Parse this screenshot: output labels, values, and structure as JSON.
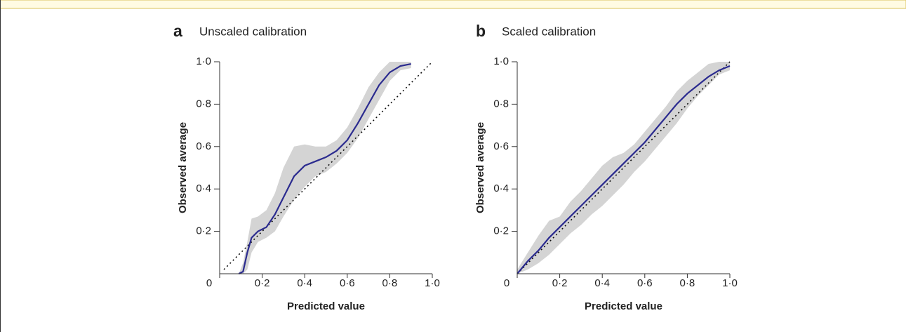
{
  "chart_data": [
    {
      "type": "line",
      "panel": "a",
      "title": "Unscaled calibration",
      "xlabel": "Predicted value",
      "ylabel": "Observed average",
      "xlim": [
        0,
        1
      ],
      "ylim": [
        0,
        1
      ],
      "xticks": [
        0,
        {
          "value": 0.2,
          "label": "0·2"
        },
        {
          "value": 0.4,
          "label": "0·4"
        },
        {
          "value": 0.6,
          "label": "0·6"
        },
        {
          "value": 0.8,
          "label": "0·8"
        },
        {
          "value": 1,
          "label": "1·0"
        }
      ],
      "yticks": [
        {
          "value": 0.2,
          "label": "0·2"
        },
        {
          "value": 0.4,
          "label": "0·4"
        },
        {
          "value": 0.6,
          "label": "0·6"
        },
        {
          "value": 0.8,
          "label": "0·8"
        },
        {
          "value": 1,
          "label": "1·0"
        }
      ],
      "x": [
        0.09,
        0.11,
        0.13,
        0.15,
        0.18,
        0.22,
        0.26,
        0.3,
        0.35,
        0.4,
        0.45,
        0.5,
        0.55,
        0.6,
        0.65,
        0.7,
        0.75,
        0.8,
        0.85,
        0.9
      ],
      "series": [
        {
          "color": "#2b2b8f",
          "values": [
            0,
            0.01,
            0.1,
            0.17,
            0.2,
            0.22,
            0.28,
            0.36,
            0.46,
            0.51,
            0.53,
            0.55,
            0.58,
            0.63,
            0.71,
            0.8,
            0.89,
            0.95,
            0.98,
            0.99
          ]
        }
      ],
      "band": {
        "color": "#d4d4d4",
        "upper": [
          0,
          0.05,
          0.15,
          0.26,
          0.27,
          0.3,
          0.38,
          0.5,
          0.6,
          0.61,
          0.6,
          0.6,
          0.63,
          0.69,
          0.78,
          0.88,
          0.95,
          1.0,
          1.0,
          1.0
        ],
        "lower": [
          0,
          0,
          0.02,
          0.1,
          0.15,
          0.17,
          0.2,
          0.27,
          0.35,
          0.41,
          0.46,
          0.48,
          0.52,
          0.57,
          0.64,
          0.73,
          0.82,
          0.91,
          0.96,
          0.97
        ]
      },
      "reference": {
        "color": "#111111",
        "x": [
          0.02,
          1
        ],
        "values": [
          0.02,
          1
        ]
      }
    },
    {
      "type": "line",
      "panel": "b",
      "title": "Scaled calibration",
      "xlabel": "Predicted value",
      "ylabel": "Observed average",
      "xlim": [
        0,
        1
      ],
      "ylim": [
        0,
        1
      ],
      "xticks": [
        0,
        {
          "value": 0.2,
          "label": "0·2"
        },
        {
          "value": 0.4,
          "label": "0·4"
        },
        {
          "value": 0.6,
          "label": "0·6"
        },
        {
          "value": 0.8,
          "label": "0·8"
        },
        {
          "value": 1,
          "label": "1·0"
        }
      ],
      "yticks": [
        {
          "value": 0.2,
          "label": "0·2"
        },
        {
          "value": 0.4,
          "label": "0·4"
        },
        {
          "value": 0.6,
          "label": "0·6"
        },
        {
          "value": 0.8,
          "label": "0·8"
        },
        {
          "value": 1,
          "label": "1·0"
        }
      ],
      "x": [
        0,
        0.05,
        0.1,
        0.15,
        0.2,
        0.25,
        0.3,
        0.35,
        0.4,
        0.45,
        0.5,
        0.55,
        0.6,
        0.65,
        0.7,
        0.75,
        0.8,
        0.85,
        0.9,
        0.95,
        1.0
      ],
      "series": [
        {
          "color": "#2b2b8f",
          "values": [
            0,
            0.06,
            0.11,
            0.17,
            0.22,
            0.27,
            0.32,
            0.37,
            0.42,
            0.47,
            0.52,
            0.57,
            0.62,
            0.68,
            0.74,
            0.8,
            0.85,
            0.89,
            0.93,
            0.96,
            0.98
          ]
        }
      ],
      "band": {
        "color": "#d4d4d4",
        "upper": [
          0.02,
          0.1,
          0.18,
          0.25,
          0.27,
          0.34,
          0.39,
          0.45,
          0.51,
          0.55,
          0.57,
          0.61,
          0.67,
          0.73,
          0.79,
          0.86,
          0.91,
          0.95,
          0.99,
          1.0,
          1.0
        ],
        "lower": [
          0,
          0.02,
          0.05,
          0.09,
          0.14,
          0.19,
          0.23,
          0.28,
          0.32,
          0.37,
          0.42,
          0.48,
          0.53,
          0.59,
          0.65,
          0.71,
          0.78,
          0.84,
          0.89,
          0.94,
          0.96
        ]
      },
      "reference": {
        "color": "#111111",
        "x": [
          0,
          1
        ],
        "values": [
          0,
          1
        ]
      }
    }
  ]
}
